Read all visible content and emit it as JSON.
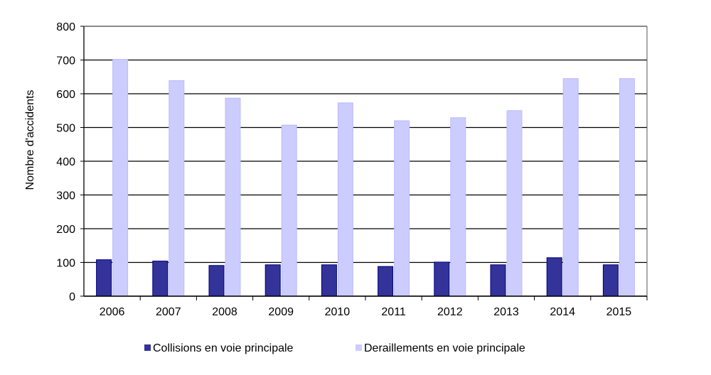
{
  "chart_data": {
    "type": "bar",
    "title": "",
    "xlabel": "",
    "ylabel": "Nombre  d'accidents",
    "ylim": [
      0,
      800
    ],
    "yticks": [
      0,
      100,
      200,
      300,
      400,
      500,
      600,
      700,
      800
    ],
    "grid": true,
    "legend_position": "bottom",
    "categories": [
      "2006",
      "2007",
      "2008",
      "2009",
      "2010",
      "2011",
      "2012",
      "2013",
      "2014",
      "2015"
    ],
    "series": [
      {
        "name": "Collisions en voie principale",
        "color": "#333399",
        "values": [
          108,
          104,
          91,
          93,
          93,
          88,
          101,
          93,
          114,
          93
        ]
      },
      {
        "name": "Deraillements en voie principale",
        "color": "#ccccff",
        "values": [
          702,
          639,
          587,
          507,
          573,
          520,
          529,
          550,
          645,
          645
        ]
      }
    ]
  }
}
